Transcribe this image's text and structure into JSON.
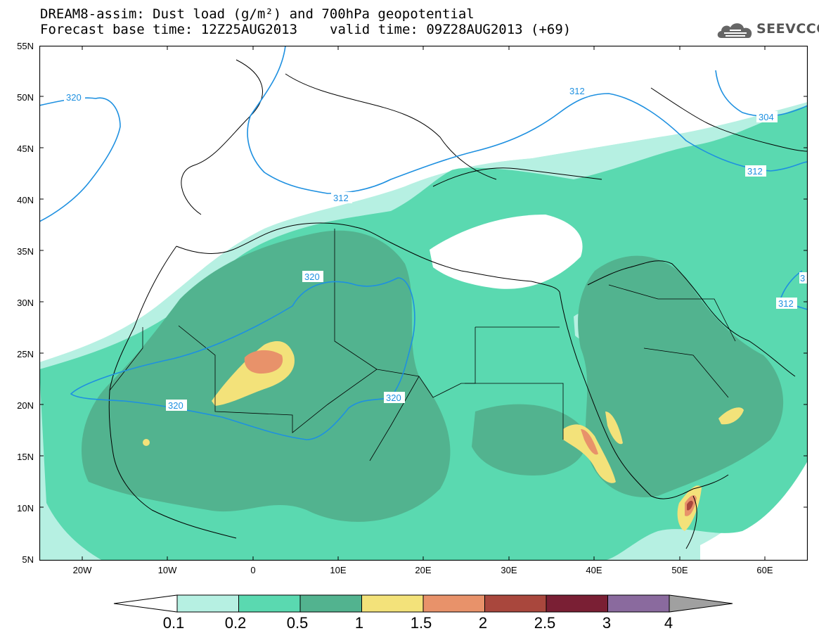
{
  "title": {
    "line1": "DREAM8-assim: Dust load (g/m²) and 700hPa geopotential",
    "line2_left": "Forecast base time: 12Z25AUG2013",
    "line2_right": "valid time: 09Z28AUG2013 (+69)"
  },
  "logo": {
    "text": "SEEVCCC",
    "icon": "cloud-icon"
  },
  "axes": {
    "lat_labels": [
      "55N",
      "50N",
      "45N",
      "40N",
      "35N",
      "30N",
      "25N",
      "20N",
      "15N",
      "10N",
      "5N"
    ],
    "lon_labels": [
      "20W",
      "10W",
      "0",
      "10E",
      "20E",
      "30E",
      "40E",
      "50E",
      "60E"
    ],
    "lat_range": [
      5,
      55
    ],
    "lon_range": [
      -25,
      65
    ]
  },
  "contours": {
    "field": "700hPa geopotential (dam)",
    "labels": [
      "320",
      "320",
      "312",
      "312",
      "304",
      "312",
      "320",
      "320",
      "312",
      "3"
    ],
    "color": "#1e90e0"
  },
  "colorbar": {
    "labels": [
      "0.1",
      "0.2",
      "0.5",
      "1",
      "1.5",
      "2",
      "2.5",
      "3",
      "4"
    ],
    "colors": [
      "#ffffff",
      "#b6f0e2",
      "#5ad9b0",
      "#52b38f",
      "#f3e27a",
      "#e8926a",
      "#a9473d",
      "#7a1f34",
      "#8a6a9e",
      "#a0a0a0"
    ]
  },
  "shading_colors": {
    "light": "#b6f0e2",
    "mid": "#5ad9b0",
    "dark": "#52b38f",
    "yellow": "#f3e27a",
    "orange": "#e8926a",
    "red": "#a9473d"
  }
}
